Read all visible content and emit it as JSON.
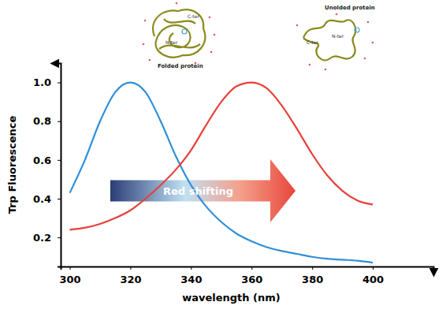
{
  "chart_data": {
    "type": "line",
    "x_label": "wavelength (nm)",
    "y_label": "Trp Fluorescence",
    "annotations": [
      "Red shifting",
      "Folded protein",
      "Unolded protein",
      "C-ter",
      "N-ter",
      "N-ter",
      "C-ter"
    ],
    "x": [
      300,
      305,
      310,
      315,
      320,
      325,
      330,
      335,
      340,
      345,
      350,
      355,
      360,
      365,
      370,
      375,
      380,
      385,
      390,
      395,
      400
    ],
    "series": [
      {
        "color": "#2f8fd8",
        "values": [
          0.43,
          0.6,
          0.8,
          0.95,
          1.0,
          0.95,
          0.8,
          0.62,
          0.47,
          0.36,
          0.28,
          0.22,
          0.18,
          0.15,
          0.13,
          0.115,
          0.1,
          0.09,
          0.085,
          0.08,
          0.07
        ]
      },
      {
        "color": "#e8403a",
        "values": [
          0.24,
          0.25,
          0.27,
          0.3,
          0.34,
          0.4,
          0.47,
          0.55,
          0.65,
          0.78,
          0.9,
          0.98,
          1.0,
          0.97,
          0.88,
          0.76,
          0.63,
          0.52,
          0.44,
          0.39,
          0.37
        ]
      }
    ],
    "xlim": [
      297,
      420
    ],
    "ylim": [
      0.05,
      1.1
    ],
    "xticks": [
      300,
      320,
      340,
      360,
      380,
      400
    ],
    "yticks": [
      0.2,
      0.4,
      0.6,
      0.8,
      {
        "value": 1,
        "label": "1.0"
      }
    ],
    "grid": false
  }
}
